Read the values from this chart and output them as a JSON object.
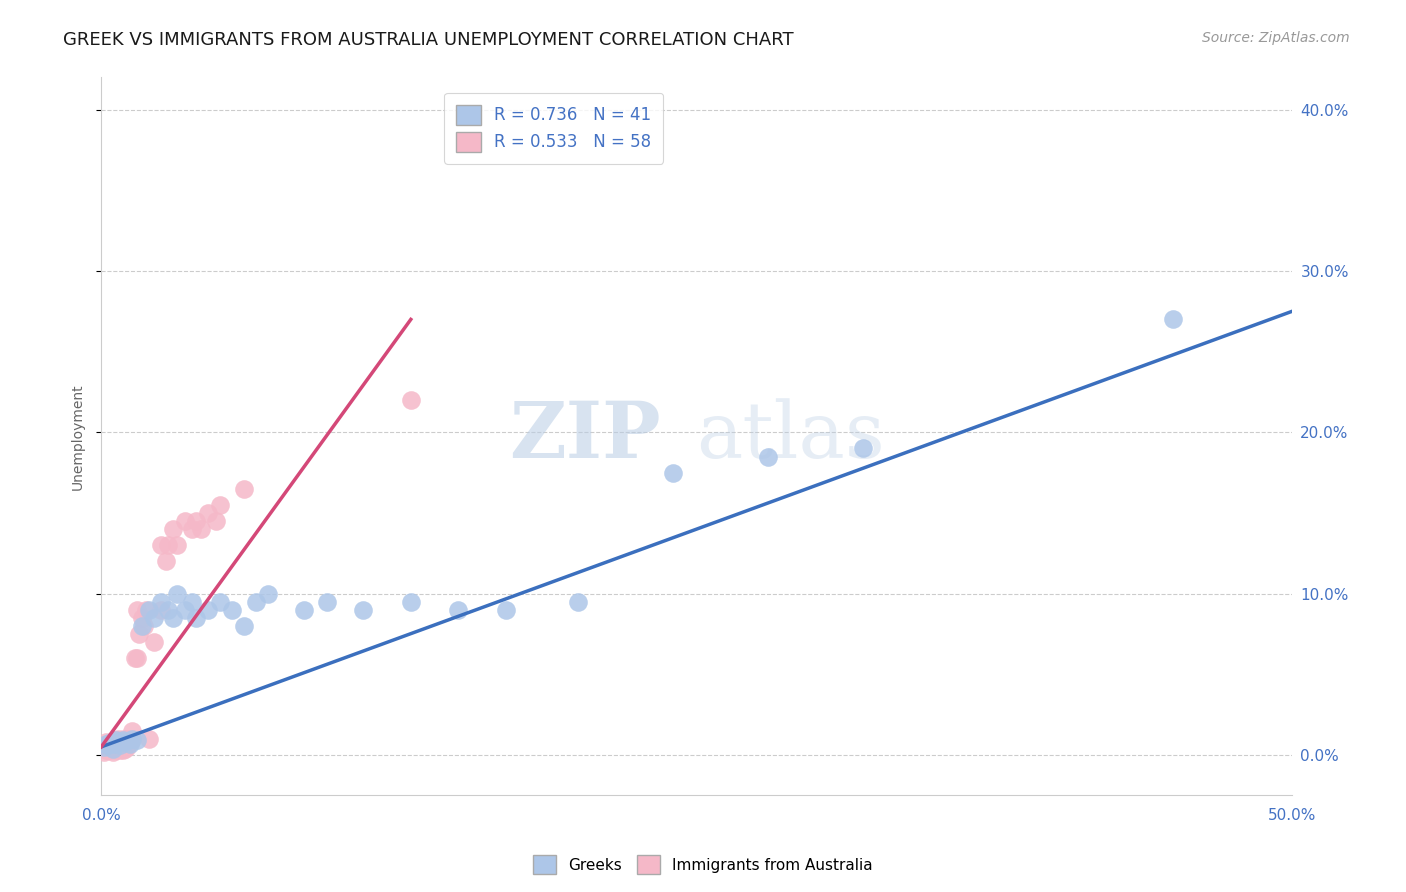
{
  "title": "GREEK VS IMMIGRANTS FROM AUSTRALIA UNEMPLOYMENT CORRELATION CHART",
  "source": "Source: ZipAtlas.com",
  "ylabel": "Unemployment",
  "xlim": [
    0.0,
    0.5
  ],
  "ylim": [
    -0.025,
    0.42
  ],
  "xticks": [
    0.0,
    0.05,
    0.1,
    0.15,
    0.2,
    0.25,
    0.3,
    0.35,
    0.4,
    0.45,
    0.5
  ],
  "yticks": [
    0.0,
    0.1,
    0.2,
    0.3,
    0.4
  ],
  "background_color": "#ffffff",
  "watermark_zip": "ZIP",
  "watermark_atlas": "atlas",
  "series": [
    {
      "name": "Greeks",
      "R": 0.736,
      "N": 41,
      "color": "#adc6e8",
      "line_color": "#3b6fbe",
      "x": [
        0.001,
        0.002,
        0.003,
        0.004,
        0.005,
        0.005,
        0.006,
        0.007,
        0.008,
        0.009,
        0.01,
        0.012,
        0.013,
        0.015,
        0.017,
        0.02,
        0.022,
        0.025,
        0.028,
        0.03,
        0.032,
        0.035,
        0.038,
        0.04,
        0.045,
        0.05,
        0.055,
        0.06,
        0.065,
        0.07,
        0.085,
        0.095,
        0.11,
        0.13,
        0.15,
        0.17,
        0.2,
        0.24,
        0.28,
        0.32,
        0.45
      ],
      "y": [
        0.005,
        0.007,
        0.006,
        0.008,
        0.004,
        0.007,
        0.009,
        0.008,
        0.006,
        0.009,
        0.008,
        0.007,
        0.01,
        0.009,
        0.08,
        0.09,
        0.085,
        0.095,
        0.09,
        0.085,
        0.1,
        0.09,
        0.095,
        0.085,
        0.09,
        0.095,
        0.09,
        0.08,
        0.095,
        0.1,
        0.09,
        0.095,
        0.09,
        0.095,
        0.09,
        0.09,
        0.095,
        0.175,
        0.185,
        0.19,
        0.27
      ]
    },
    {
      "name": "Immigrants from Australia",
      "R": 0.533,
      "N": 58,
      "color": "#f5b8c8",
      "line_color": "#d44878",
      "x": [
        0.001,
        0.001,
        0.002,
        0.002,
        0.002,
        0.003,
        0.003,
        0.003,
        0.004,
        0.004,
        0.004,
        0.005,
        0.005,
        0.005,
        0.005,
        0.006,
        0.006,
        0.006,
        0.007,
        0.007,
        0.007,
        0.008,
        0.008,
        0.008,
        0.009,
        0.009,
        0.009,
        0.01,
        0.01,
        0.011,
        0.011,
        0.012,
        0.013,
        0.013,
        0.014,
        0.015,
        0.015,
        0.016,
        0.017,
        0.018,
        0.019,
        0.02,
        0.022,
        0.025,
        0.025,
        0.027,
        0.028,
        0.03,
        0.032,
        0.035,
        0.038,
        0.04,
        0.042,
        0.045,
        0.048,
        0.05,
        0.06,
        0.13
      ],
      "y": [
        0.002,
        0.005,
        0.003,
        0.006,
        0.008,
        0.003,
        0.005,
        0.007,
        0.003,
        0.005,
        0.007,
        0.002,
        0.004,
        0.006,
        0.008,
        0.003,
        0.005,
        0.009,
        0.004,
        0.007,
        0.01,
        0.003,
        0.006,
        0.009,
        0.003,
        0.006,
        0.01,
        0.004,
        0.008,
        0.005,
        0.01,
        0.008,
        0.01,
        0.015,
        0.06,
        0.06,
        0.09,
        0.075,
        0.085,
        0.08,
        0.09,
        0.01,
        0.07,
        0.09,
        0.13,
        0.12,
        0.13,
        0.14,
        0.13,
        0.145,
        0.14,
        0.145,
        0.14,
        0.15,
        0.145,
        0.155,
        0.165,
        0.22
      ]
    }
  ],
  "greek_line_x": [
    0.0,
    0.5
  ],
  "greek_line_y": [
    0.005,
    0.275
  ],
  "immig_line_x": [
    0.0,
    0.13
  ],
  "immig_line_y": [
    0.005,
    0.27
  ],
  "title_color": "#1a1a1a",
  "axis_color": "#4472c4",
  "grid_color": "#cccccc",
  "title_fontsize": 13,
  "axis_label_fontsize": 10,
  "tick_fontsize": 11,
  "source_fontsize": 10
}
